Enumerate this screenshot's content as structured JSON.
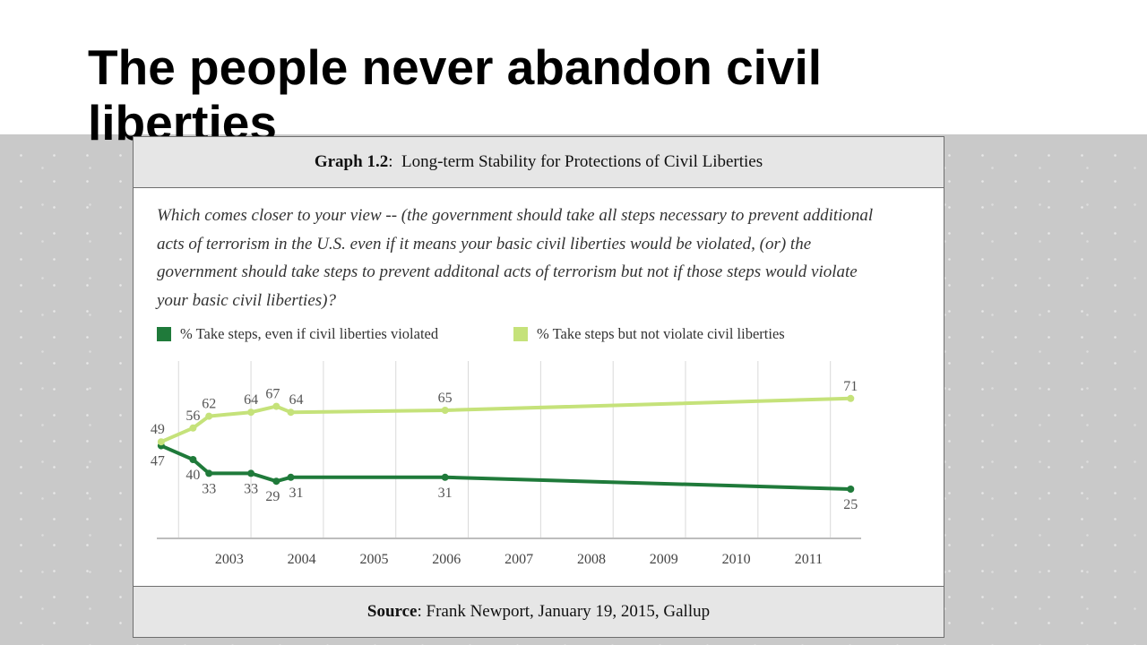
{
  "slide": {
    "title": "The people never abandon civil liberties"
  },
  "figure": {
    "header_bold": "Graph 1.2",
    "header_rest": ":  Long-term Stability for Protections of Civil Liberties",
    "question": "Which comes closer to your view -- (the government should take all steps necessary to prevent additional acts of terrorism in the U.S. even if it means your basic civil liberties would be violated, (or) the government should take steps to prevent additonal acts of terrorism but not if those steps would violate your basic civil liberties)?",
    "source_bold": "Source",
    "source_rest": ": Frank Newport, January 19, 2015, Gallup"
  },
  "colors": {
    "dark_green": "#1f7a3a",
    "light_green": "#c5e27a",
    "grid": "#d9d9d9"
  },
  "chart_data": {
    "type": "line",
    "x_ticks": [
      "2003",
      "2004",
      "2005",
      "2006",
      "2007",
      "2008",
      "2009",
      "2010",
      "2011"
    ],
    "xlim": [
      2002.0,
      2011.7
    ],
    "ylim": [
      0,
      90
    ],
    "grid": "vertical",
    "legend_position": "top",
    "series": [
      {
        "name": "% Take steps, even if civil liberties violated",
        "color": "#1f7a3a",
        "points": [
          {
            "x": 2002.06,
            "y": 47,
            "label": "47"
          },
          {
            "x": 2002.5,
            "y": 40,
            "label": "40"
          },
          {
            "x": 2002.72,
            "y": 33,
            "label": "33"
          },
          {
            "x": 2003.3,
            "y": 33,
            "label": "33"
          },
          {
            "x": 2003.65,
            "y": 29,
            "label": "29"
          },
          {
            "x": 2003.85,
            "y": 31,
            "label": "31"
          },
          {
            "x": 2005.98,
            "y": 31,
            "label": "31"
          },
          {
            "x": 2011.58,
            "y": 25,
            "label": "25"
          }
        ]
      },
      {
        "name": "% Take steps but not violate civil liberties",
        "color": "#c5e27a",
        "points": [
          {
            "x": 2002.06,
            "y": 49,
            "label": "49"
          },
          {
            "x": 2002.5,
            "y": 56,
            "label": "56"
          },
          {
            "x": 2002.72,
            "y": 62,
            "label": "62"
          },
          {
            "x": 2003.3,
            "y": 64,
            "label": "64"
          },
          {
            "x": 2003.65,
            "y": 67,
            "label": "67"
          },
          {
            "x": 2003.85,
            "y": 64,
            "label": "64"
          },
          {
            "x": 2005.98,
            "y": 65,
            "label": "65"
          },
          {
            "x": 2011.58,
            "y": 71,
            "label": "71"
          }
        ]
      }
    ]
  }
}
